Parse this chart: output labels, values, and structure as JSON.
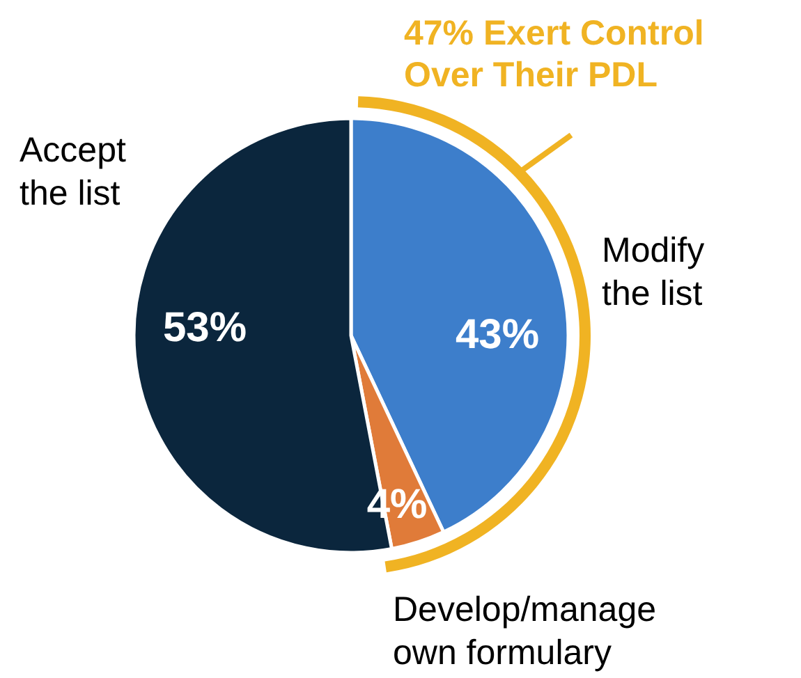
{
  "chart_data": {
    "type": "pie",
    "categories": [
      "Modify the list",
      "Develop/manage own formulary",
      "Accept the list"
    ],
    "values": [
      43,
      4,
      53
    ],
    "colors": [
      "#3d7ecb",
      "#e07b39",
      "#0b263d"
    ],
    "value_labels": [
      "43%",
      "4%",
      "53%"
    ],
    "annotations": [
      "47% Exert Control Over Their PDL"
    ]
  }
}
